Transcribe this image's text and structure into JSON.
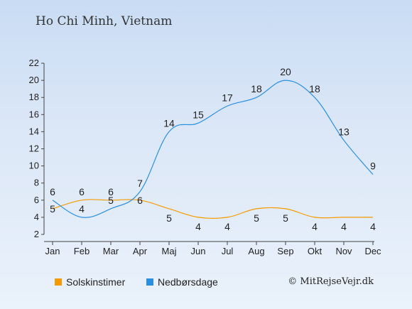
{
  "chart_data": {
    "type": "line",
    "title": "Ho Chi Minh, Vietnam",
    "categories": [
      "Jan",
      "Feb",
      "Mar",
      "Apr",
      "Maj",
      "Jun",
      "Jul",
      "Aug",
      "Sep",
      "Okt",
      "Nov",
      "Dec"
    ],
    "series": [
      {
        "name": "Solskinstimer",
        "color": "#f59a00",
        "values": [
          5,
          6,
          6,
          6,
          5,
          4,
          4,
          5,
          5,
          4,
          4,
          4
        ]
      },
      {
        "name": "Nedbørsdage",
        "color": "#2b8fe0",
        "values": [
          6,
          4,
          5,
          7,
          14,
          15,
          17,
          18,
          20,
          18,
          13,
          9
        ]
      }
    ],
    "ylim": [
      2,
      22
    ],
    "yticks": [
      2,
      4,
      6,
      8,
      10,
      12,
      14,
      16,
      18,
      20,
      22
    ],
    "grid": false,
    "legend": "bottom"
  },
  "copyright": "© MitRejseVejr.dk"
}
